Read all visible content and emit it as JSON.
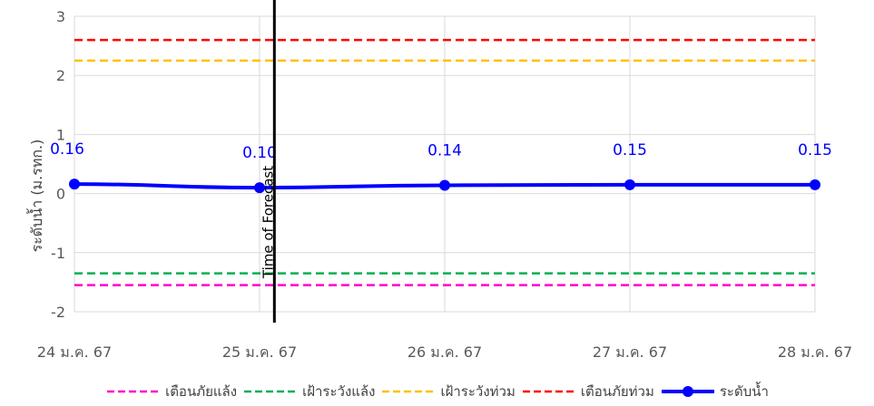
{
  "chart_data": {
    "type": "line",
    "ylabel": "ระดับน้ำ (ม.รทก.)",
    "ylim": [
      -2,
      3
    ],
    "yticks": [
      -2,
      -1,
      0,
      1,
      2,
      3
    ],
    "categories": [
      "24 ม.ค. 67",
      "25 ม.ค. 67",
      "26 ม.ค. 67",
      "27 ม.ค. 67",
      "28 ม.ค. 67"
    ],
    "grid": true,
    "legend_position": "bottom",
    "series": [
      {
        "name": "ระดับน้ำ",
        "color": "#0000ff",
        "style": "solid-marker",
        "values": [
          0.16,
          0.1,
          0.14,
          0.15,
          0.15
        ],
        "labels": [
          "0.16",
          "0.10",
          "0.14",
          "0.15",
          "0.15"
        ]
      }
    ],
    "thresholds": [
      {
        "name": "เตือนภัยแล้ง",
        "value": -1.55,
        "color": "#ff00cc",
        "style": "dashed"
      },
      {
        "name": "เฝ้าระวังแล้ง",
        "value": -1.35,
        "color": "#00b050",
        "style": "dashed"
      },
      {
        "name": "เฝ้าระวังท่วม",
        "value": 2.25,
        "color": "#ffc000",
        "style": "dashed"
      },
      {
        "name": "เตือนภัยท่วม",
        "value": 2.6,
        "color": "#ff0000",
        "style": "dashed"
      }
    ],
    "annotation": {
      "text": "Time of Forecast",
      "x": 1.08
    }
  }
}
